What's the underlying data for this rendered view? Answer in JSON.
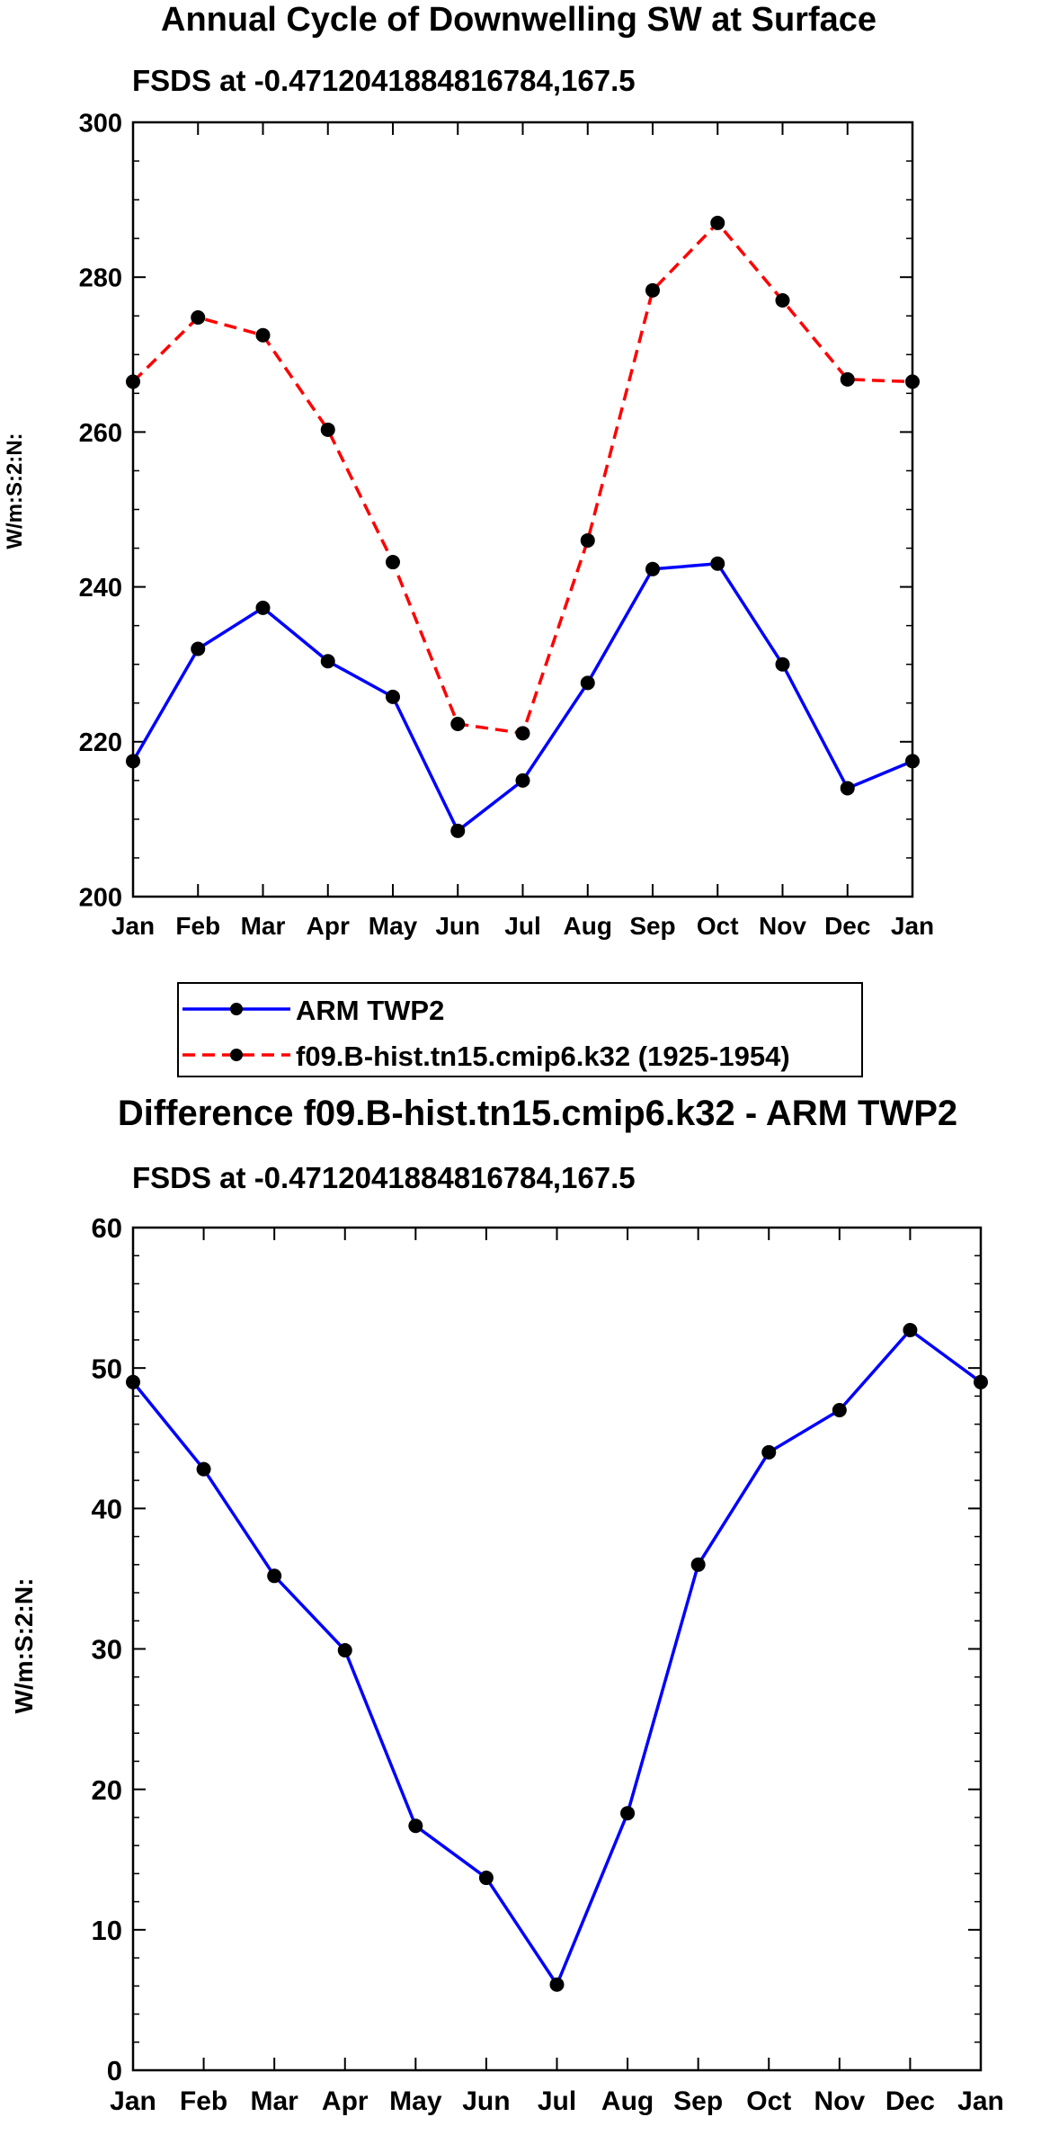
{
  "chart_data": [
    {
      "type": "line",
      "title": "Annual Cycle of Downwelling SW at Surface",
      "subtitle": "FSDS at -0.4712041884816784,167.5",
      "xlabel": "",
      "ylabel": "W/m:S:2:N:",
      "categories": [
        "Jan",
        "Feb",
        "Mar",
        "Apr",
        "May",
        "Jun",
        "Jul",
        "Aug",
        "Sep",
        "Oct",
        "Nov",
        "Dec",
        "Jan"
      ],
      "ylim": [
        200,
        300
      ],
      "yticks": [
        200,
        220,
        240,
        260,
        280,
        300
      ],
      "series": [
        {
          "name": "ARM TWP2",
          "color": "#0000ff",
          "dashed": false,
          "values": [
            217.5,
            232,
            237.3,
            230.4,
            225.8,
            208.5,
            215,
            227.6,
            242.3,
            243,
            230,
            214,
            217.5
          ]
        },
        {
          "name": "f09.B-hist.tn15.cmip6.k32 (1925-1954)",
          "color": "#ff0000",
          "dashed": true,
          "values": [
            266.5,
            274.8,
            272.5,
            260.3,
            243.2,
            222.3,
            221.1,
            246,
            278.3,
            287,
            277,
            266.8,
            266.5
          ]
        }
      ]
    },
    {
      "type": "line",
      "title": "Difference f09.B-hist.tn15.cmip6.k32 - ARM TWP2",
      "subtitle": "FSDS at -0.4712041884816784,167.5",
      "xlabel": "",
      "ylabel": "W/m:S:2:N:",
      "categories": [
        "Jan",
        "Feb",
        "Mar",
        "Apr",
        "May",
        "Jun",
        "Jul",
        "Aug",
        "Sep",
        "Oct",
        "Nov",
        "Dec",
        "Jan"
      ],
      "ylim": [
        0,
        60
      ],
      "yticks": [
        0,
        10,
        20,
        30,
        40,
        50,
        60
      ],
      "series": [
        {
          "name": "Difference",
          "color": "#0000ff",
          "dashed": false,
          "values": [
            49,
            42.8,
            35.2,
            29.9,
            17.4,
            13.7,
            6.1,
            18.3,
            36,
            44,
            47,
            52.7,
            49
          ]
        }
      ]
    }
  ]
}
